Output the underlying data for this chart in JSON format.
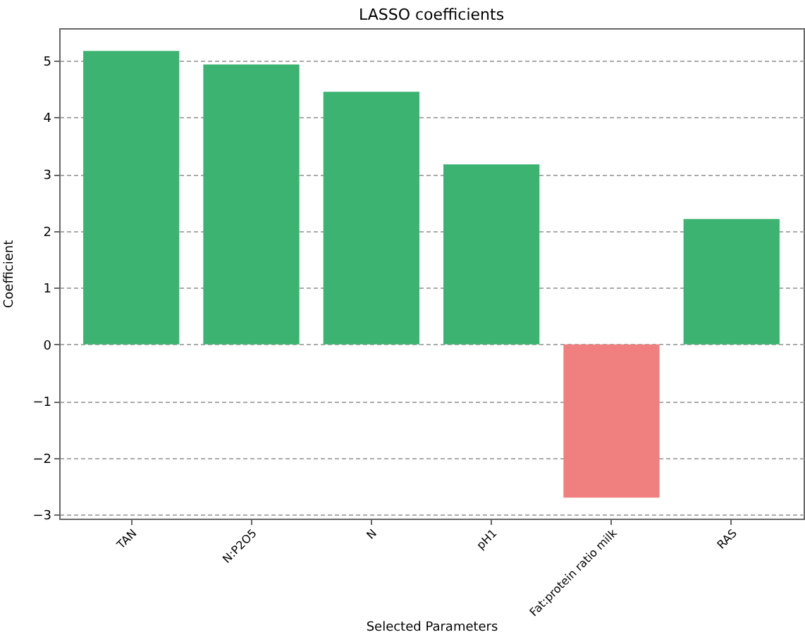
{
  "chart_data": {
    "type": "bar",
    "title": "LASSO coefficients",
    "xlabel": "Selected Parameters",
    "ylabel": "Coefficient",
    "categories": [
      "TAN",
      "N:P2O5",
      "N",
      "pH1",
      "Fat:protein ratio milk",
      "RAS"
    ],
    "values": [
      5.17,
      4.93,
      4.45,
      3.17,
      -2.7,
      2.21
    ],
    "colors": [
      "#3cb371",
      "#3cb371",
      "#3cb371",
      "#3cb371",
      "#f08080",
      "#3cb371"
    ],
    "ylim": [
      -3.07,
      5.57
    ],
    "yticks": [
      -3,
      -2,
      -1,
      0,
      1,
      2,
      3,
      4,
      5
    ],
    "grid": "y"
  }
}
